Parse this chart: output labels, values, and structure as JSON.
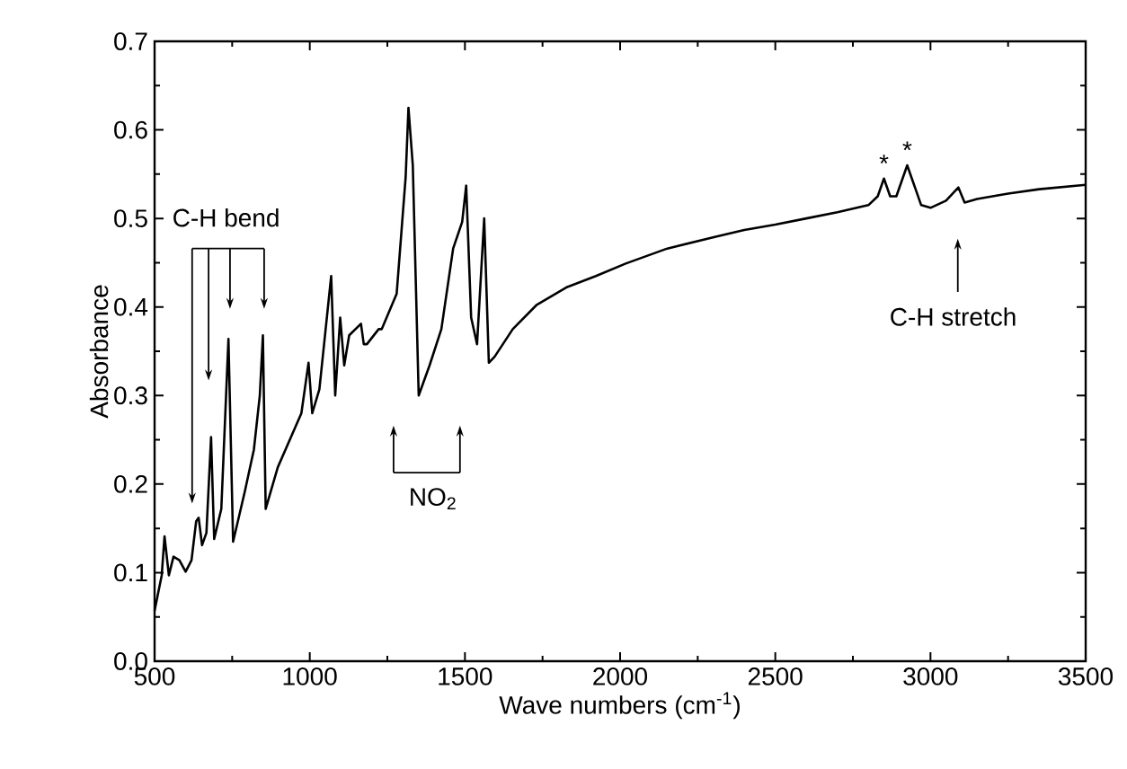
{
  "chart_data": {
    "type": "line",
    "xlabel": "Wave numbers (cm$^{-1}$)",
    "ylabel": "Absorbance",
    "xlim": [
      500,
      3500
    ],
    "ylim": [
      0,
      0.7
    ],
    "xticks": [
      500,
      1000,
      1500,
      2000,
      2500,
      3000,
      3500
    ],
    "yticks": [
      {
        "value": 0,
        "label": "0.0"
      },
      0.1,
      0.2,
      0.3,
      0.4,
      0.5,
      0.6,
      0.7
    ],
    "marker": "none",
    "line_style": "solid",
    "series": [
      {
        "color": "#000000",
        "x": [
          500,
          523,
          532,
          546,
          561,
          580,
          600,
          619,
          634,
          642,
          653,
          667,
          682,
          692,
          715,
          738,
          753,
          791,
          820,
          839,
          849,
          858,
          897,
          973,
          996,
          1008,
          1031,
          1069,
          1082,
          1098,
          1111,
          1127,
          1165,
          1174,
          1184,
          1222,
          1232,
          1280,
          1309,
          1318,
          1332,
          1351,
          1386,
          1424,
          1462,
          1491,
          1504,
          1520,
          1539,
          1562,
          1577,
          1596,
          1654,
          1730,
          1826,
          1922,
          2018,
          2152,
          2305,
          2400,
          2500,
          2600,
          2700,
          2800,
          2830,
          2850,
          2870,
          2890,
          2925,
          2945,
          2970,
          3000,
          3050,
          3090,
          3110,
          3150,
          3250,
          3350,
          3500
        ],
        "values": [
          0.057,
          0.097,
          0.141,
          0.097,
          0.118,
          0.114,
          0.101,
          0.114,
          0.158,
          0.162,
          0.131,
          0.145,
          0.253,
          0.138,
          0.172,
          0.364,
          0.135,
          0.192,
          0.239,
          0.3,
          0.368,
          0.172,
          0.219,
          0.28,
          0.337,
          0.28,
          0.307,
          0.435,
          0.3,
          0.388,
          0.334,
          0.368,
          0.381,
          0.358,
          0.358,
          0.375,
          0.375,
          0.415,
          0.547,
          0.625,
          0.56,
          0.3,
          0.334,
          0.375,
          0.466,
          0.496,
          0.537,
          0.388,
          0.358,
          0.5,
          0.337,
          0.344,
          0.375,
          0.402,
          0.422,
          0.435,
          0.449,
          0.466,
          0.479,
          0.487,
          0.493,
          0.5,
          0.507,
          0.515,
          0.525,
          0.545,
          0.525,
          0.525,
          0.56,
          0.54,
          0.515,
          0.512,
          0.52,
          0.535,
          0.518,
          0.522,
          0.528,
          0.533,
          0.538
        ]
      }
    ],
    "annotations": [
      "C-H bend",
      "NO$_{2}$",
      "C-H stretch",
      {
        "text": "*",
        "x": 2850,
        "y": 0.545
      },
      {
        "text": "*",
        "x": 2925,
        "y": 0.56
      }
    ]
  }
}
